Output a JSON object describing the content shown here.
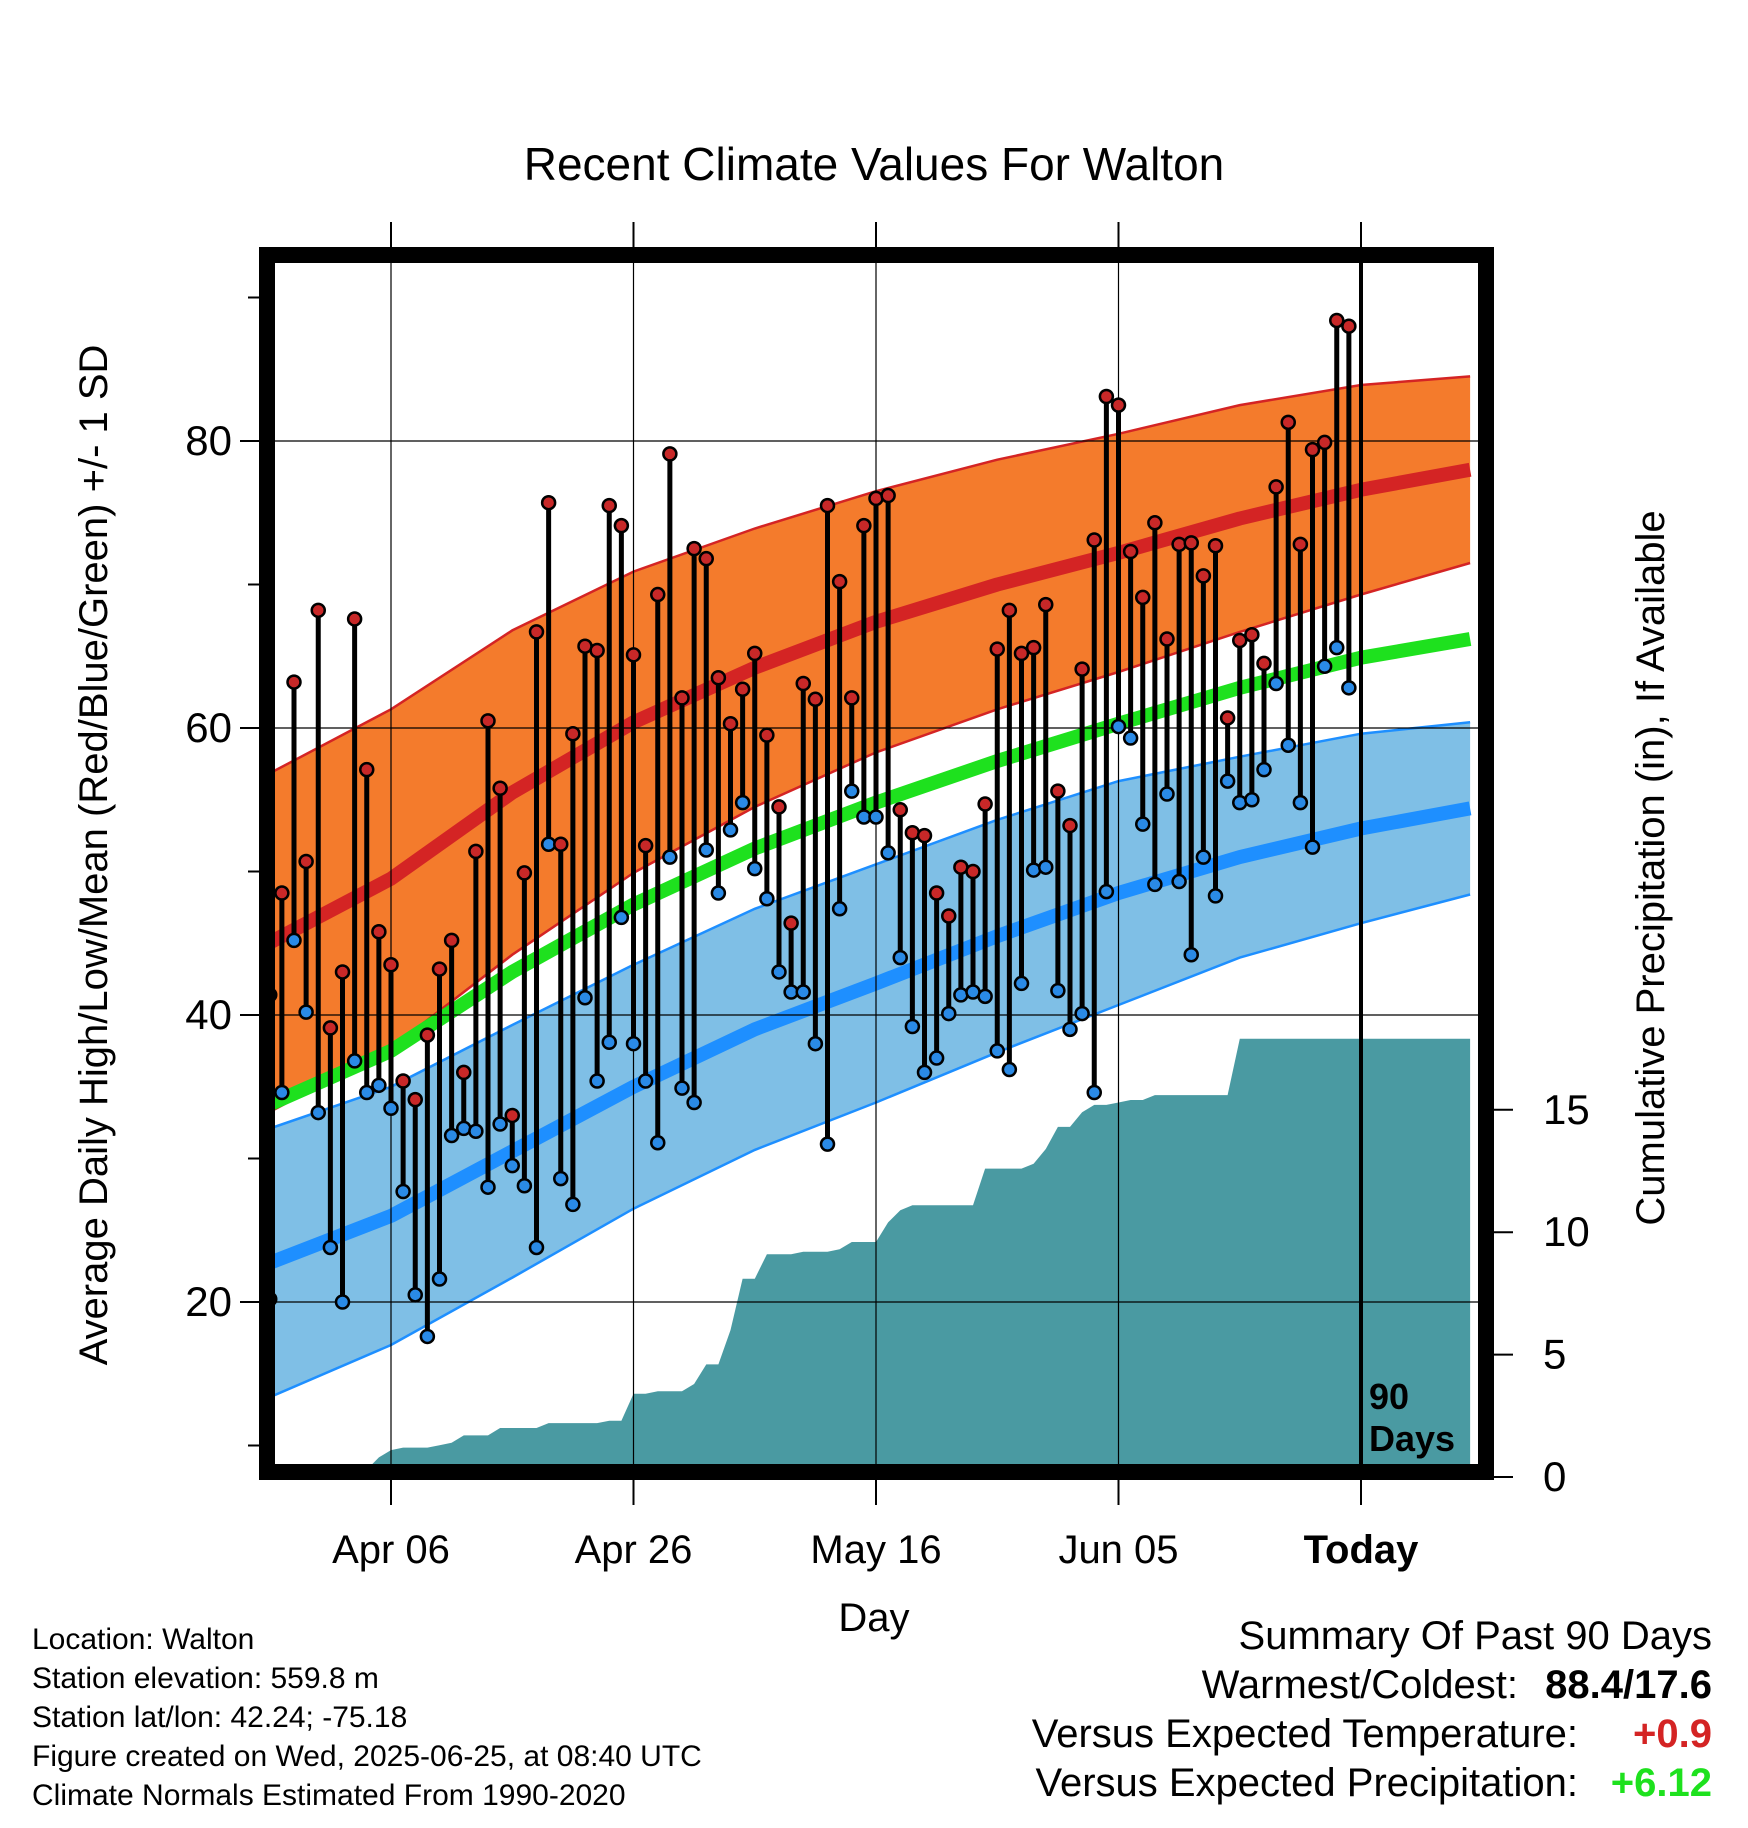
{
  "chart_data": {
    "type": "line",
    "title": "Recent Climate Values For Walton",
    "xlabel": "Day",
    "ylabel": "Average Daily High/Low/Mean (Red/Blue/Green) +/- 1 SD",
    "y2label": "Cumulative Precipitation (in), If Available",
    "xlim": [
      -11,
      89
    ],
    "ylim": [
      8,
      93
    ],
    "y2lim": [
      0,
      24
    ],
    "x_ticks": [
      {
        "x": 0,
        "label": "Apr 06"
      },
      {
        "x": 20,
        "label": "Apr 26"
      },
      {
        "x": 40,
        "label": "May 16"
      },
      {
        "x": 60,
        "label": "Jun 05"
      },
      {
        "x": 80,
        "label": "Today"
      }
    ],
    "y_ticks": [
      20,
      40,
      60,
      80
    ],
    "y2_ticks": [
      0,
      5,
      10,
      15
    ],
    "today_x": 80,
    "today_label": [
      "90",
      "Days"
    ],
    "grid": true,
    "normals": {
      "x": [
        -11,
        0,
        10,
        20,
        30,
        40,
        50,
        60,
        70,
        80,
        89
      ],
      "high_mean": [
        44.6,
        49.5,
        55.5,
        60.4,
        64.2,
        67.4,
        70.0,
        72.2,
        74.6,
        76.6,
        78.0
      ],
      "high_sd": [
        11.8,
        11.8,
        11.3,
        10.5,
        9.7,
        9.1,
        8.7,
        8.3,
        7.9,
        7.3,
        6.5
      ],
      "low_mean": [
        22.4,
        26.0,
        30.5,
        35.0,
        39.0,
        42.2,
        45.5,
        48.5,
        51.0,
        53.0,
        54.4
      ],
      "low_sd": [
        9.4,
        9.0,
        8.8,
        8.5,
        8.4,
        8.3,
        8.1,
        7.8,
        7.0,
        6.6,
        6.0
      ],
      "avg_mean": [
        33.4,
        37.5,
        43.0,
        47.7,
        51.6,
        54.8,
        57.7,
        60.3,
        62.8,
        64.9,
        66.2
      ]
    },
    "observed": {
      "x": [
        -10,
        -9,
        -8,
        -7,
        -6,
        -5,
        -4,
        -3,
        -2,
        -1,
        0,
        1,
        2,
        3,
        4,
        5,
        6,
        7,
        8,
        9,
        10,
        11,
        12,
        13,
        14,
        15,
        16,
        17,
        18,
        19,
        20,
        21,
        22,
        23,
        24,
        25,
        26,
        27,
        28,
        29,
        30,
        31,
        32,
        33,
        34,
        35,
        36,
        37,
        38,
        39,
        40,
        41,
        42,
        43,
        44,
        45,
        46,
        47,
        48,
        49,
        50,
        51,
        52,
        53,
        54,
        55,
        56,
        57,
        58,
        59,
        60,
        61,
        62,
        63,
        64,
        65,
        66,
        67,
        68,
        69,
        70,
        71,
        72,
        73,
        74,
        75,
        76,
        77,
        78,
        79
      ],
      "high": [
        41.4,
        48.5,
        63.2,
        50.7,
        68.2,
        39.1,
        43.0,
        67.6,
        57.1,
        45.8,
        43.5,
        35.4,
        34.1,
        38.6,
        43.2,
        45.2,
        36.0,
        51.4,
        60.5,
        55.8,
        33.0,
        49.9,
        66.7,
        75.7,
        51.9,
        59.6,
        65.7,
        65.4,
        75.5,
        74.1,
        65.1,
        51.8,
        69.3,
        79.1,
        62.1,
        72.5,
        71.8,
        63.5,
        60.3,
        62.7,
        65.2,
        59.5,
        54.5,
        46.4,
        63.1,
        62.0,
        75.5,
        70.2,
        62.1,
        74.1,
        76.0,
        76.2,
        54.3,
        52.7,
        52.5,
        48.5,
        46.9,
        50.3,
        50.0,
        54.7,
        65.5,
        68.2,
        65.2,
        65.6,
        68.6,
        55.6,
        53.2,
        64.1,
        73.1,
        83.1,
        82.5,
        72.3,
        69.1,
        74.3,
        66.2,
        72.8,
        72.9,
        70.6,
        72.7,
        60.7,
        66.1,
        66.5,
        64.5,
        76.8,
        81.3,
        72.8,
        79.4,
        79.9,
        88.4,
        88.0
      ],
      "low": [
        20.2,
        34.6,
        45.2,
        40.2,
        33.2,
        23.8,
        20.0,
        36.8,
        34.6,
        35.1,
        33.5,
        27.7,
        20.5,
        17.6,
        21.6,
        31.6,
        32.1,
        31.9,
        28.0,
        32.4,
        29.5,
        28.1,
        23.8,
        51.9,
        28.6,
        26.8,
        41.2,
        35.4,
        38.1,
        46.8,
        38.0,
        35.4,
        31.1,
        51.0,
        34.9,
        33.9,
        51.5,
        48.5,
        52.9,
        54.8,
        50.2,
        48.1,
        43.0,
        41.6,
        41.6,
        38.0,
        31.0,
        47.4,
        55.6,
        53.8,
        53.8,
        51.3,
        44.0,
        39.2,
        36.0,
        37.0,
        40.1,
        41.4,
        41.6,
        41.3,
        37.5,
        36.2,
        42.2,
        50.1,
        50.3,
        41.7,
        39.0,
        40.1,
        34.6,
        48.6,
        60.1,
        59.3,
        53.3,
        49.1,
        55.4,
        49.3,
        44.2,
        51.0,
        48.3,
        56.3,
        54.8,
        55.0,
        57.1,
        63.1,
        58.8,
        54.8,
        51.7,
        64.3,
        65.6,
        62.8
      ]
    },
    "precipitation": {
      "x": [
        -4,
        -3,
        -2,
        -1,
        0,
        1,
        2,
        3,
        4,
        5,
        6,
        7,
        8,
        9,
        10,
        11,
        12,
        13,
        14,
        15,
        16,
        17,
        18,
        19,
        20,
        21,
        22,
        23,
        24,
        25,
        26,
        27,
        28,
        29,
        30,
        31,
        32,
        33,
        34,
        35,
        36,
        37,
        38,
        39,
        40,
        41,
        42,
        43,
        44,
        45,
        46,
        47,
        48,
        49,
        50,
        51,
        52,
        53,
        54,
        55,
        56,
        57,
        58,
        59,
        60,
        61,
        62,
        63,
        64,
        65,
        66,
        67,
        68,
        69,
        70,
        71,
        72,
        73,
        74,
        75,
        76,
        77,
        78,
        79,
        80,
        89
      ],
      "cumulative": [
        0.0,
        0.3,
        0.3,
        0.8,
        1.1,
        1.2,
        1.2,
        1.2,
        1.3,
        1.4,
        1.7,
        1.7,
        1.7,
        2.0,
        2.0,
        2.0,
        2.0,
        2.2,
        2.2,
        2.2,
        2.2,
        2.2,
        2.3,
        2.3,
        3.4,
        3.4,
        3.5,
        3.5,
        3.5,
        3.8,
        4.6,
        4.6,
        6.0,
        8.1,
        8.1,
        9.1,
        9.1,
        9.1,
        9.2,
        9.2,
        9.2,
        9.3,
        9.6,
        9.6,
        9.6,
        10.4,
        10.9,
        11.1,
        11.1,
        11.1,
        11.1,
        11.1,
        11.1,
        12.6,
        12.6,
        12.6,
        12.6,
        12.8,
        13.4,
        14.3,
        14.3,
        14.9,
        15.2,
        15.2,
        15.3,
        15.4,
        15.4,
        15.6,
        15.6,
        15.6,
        15.6,
        15.6,
        15.6,
        15.6,
        17.9,
        17.9,
        17.9,
        17.9,
        17.9,
        17.9,
        17.9,
        17.9,
        17.9,
        17.9,
        17.9,
        17.9
      ]
    },
    "colors": {
      "high_band": "#f47b2c",
      "high_line": "#d42424",
      "low_band": "#7fbfe6",
      "low_line": "#1e8fff",
      "avg_line": "#1ee11e",
      "precip": "#4a9aa2",
      "high_point": "#c82828",
      "low_point": "#2a8ae6"
    }
  },
  "info": {
    "location": "Location: Walton",
    "elevation": "Station elevation: 559.8 m",
    "latlon": "Station lat/lon: 42.24; -75.18",
    "created": "Figure created on Wed, 2025-06-25, at 08:40 UTC",
    "normals": "Climate Normals Estimated From 1990-2020"
  },
  "summary": {
    "title": "Summary Of Past 90 Days",
    "warm_cold_label": "Warmest/Coldest:",
    "warm_cold_value": "88.4/17.6",
    "temp_label": "Versus Expected Temperature:",
    "temp_value": "+0.9",
    "temp_color": "#d42424",
    "precip_label": "Versus Expected Precipitation:",
    "precip_value": "+6.12",
    "precip_color": "#1ee11e"
  }
}
